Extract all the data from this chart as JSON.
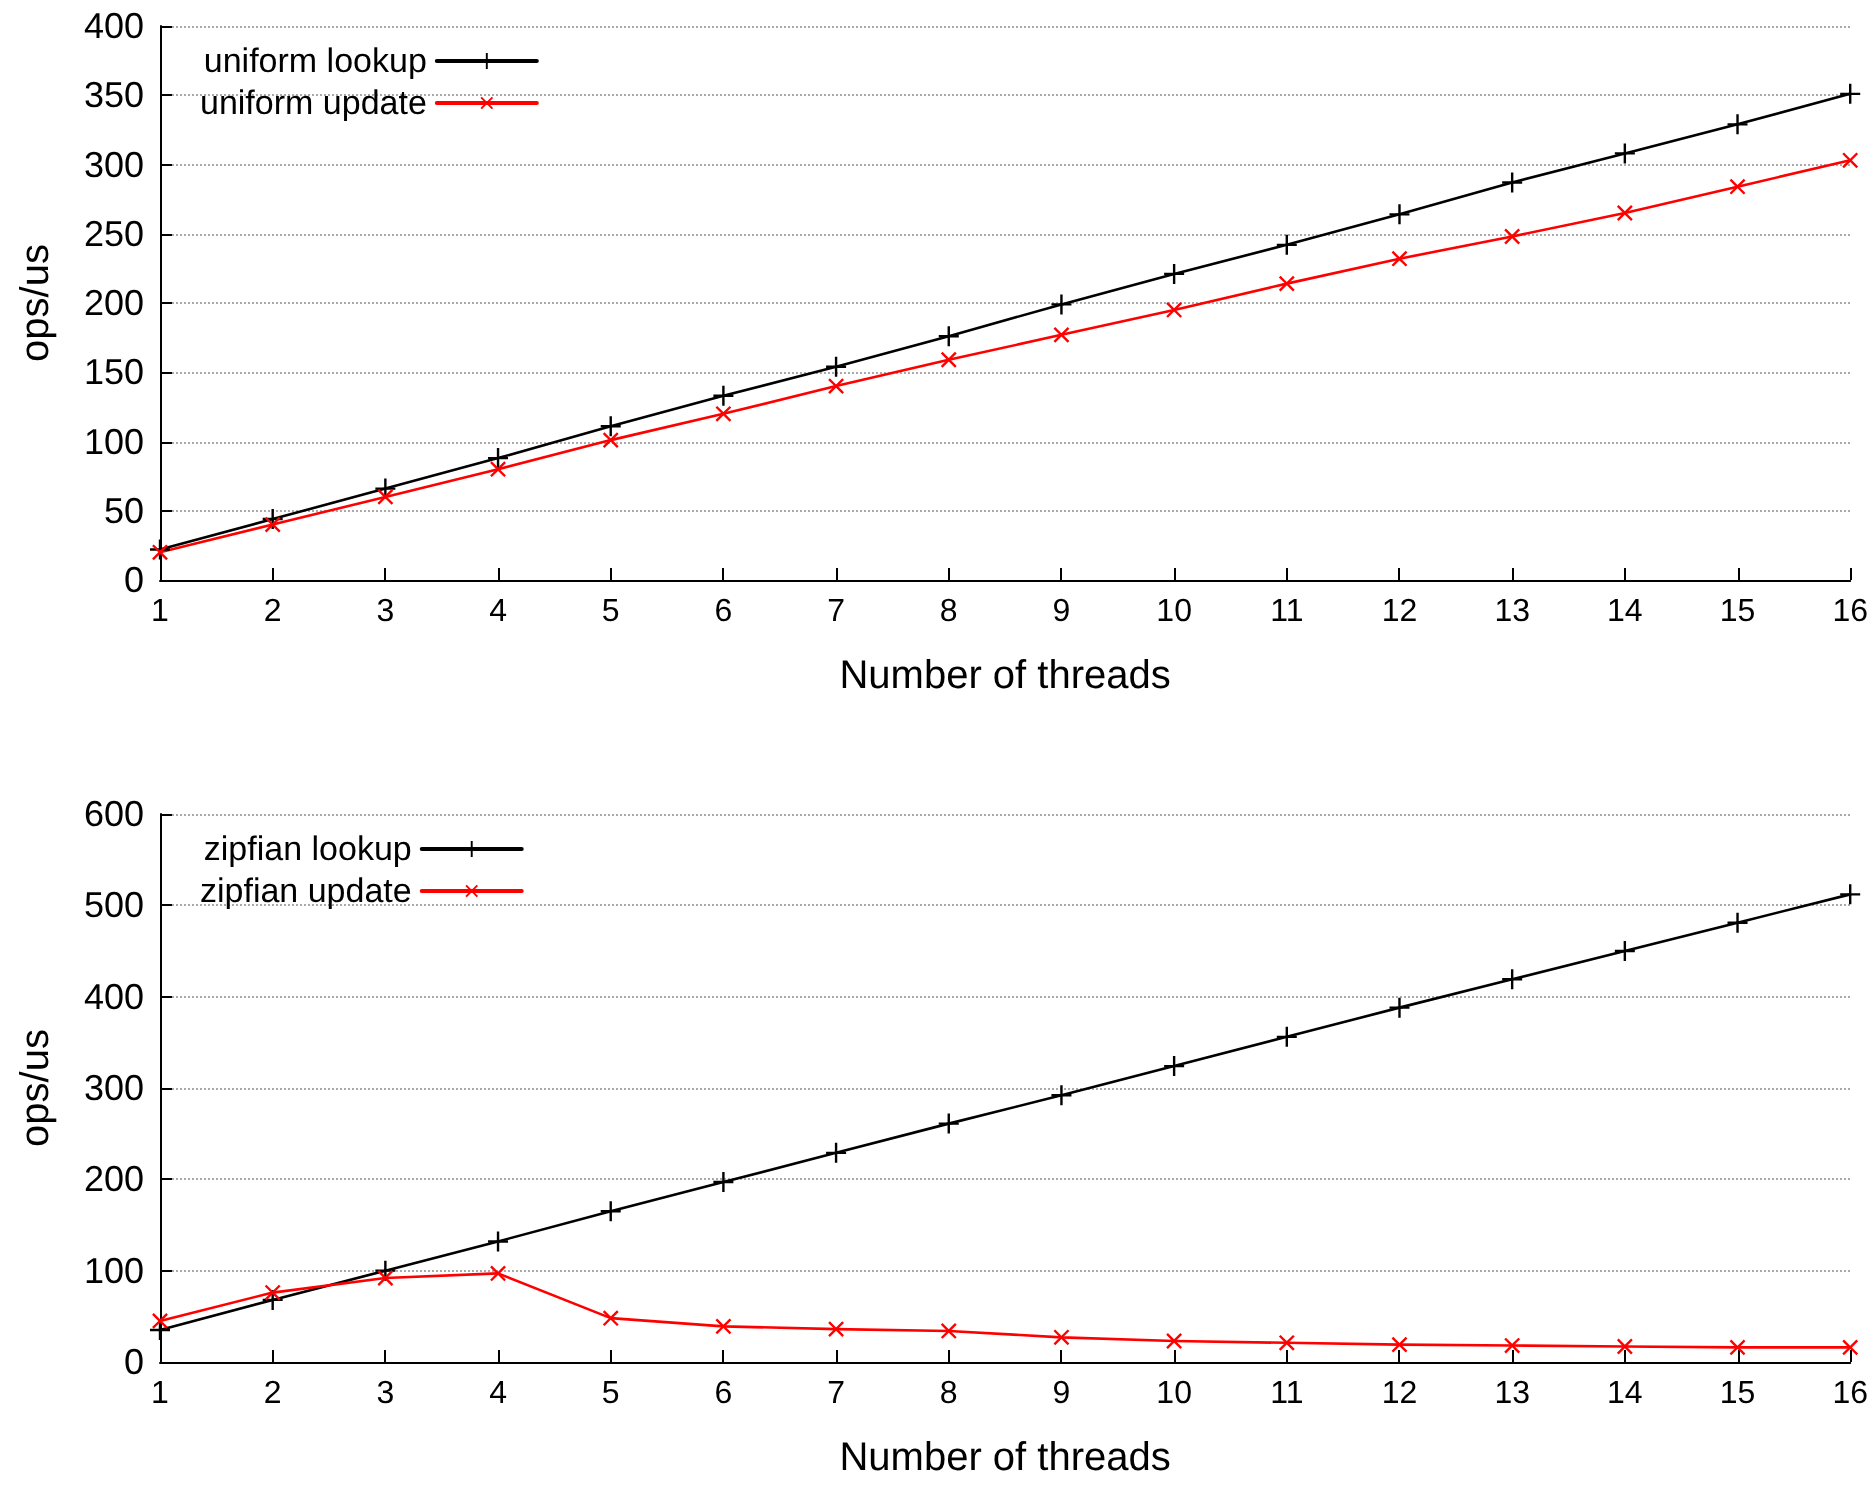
{
  "chart_data": [
    {
      "type": "line",
      "xlabel": "Number of threads",
      "ylabel": "ops/us",
      "x": [
        1,
        2,
        3,
        4,
        5,
        6,
        7,
        8,
        9,
        10,
        11,
        12,
        13,
        14,
        15,
        16
      ],
      "xlim": [
        1,
        16
      ],
      "xticks": [
        1,
        2,
        3,
        4,
        5,
        6,
        7,
        8,
        9,
        10,
        11,
        12,
        13,
        14,
        15,
        16
      ],
      "ylim": [
        0,
        400
      ],
      "yticks": [
        0,
        50,
        100,
        150,
        200,
        250,
        300,
        350,
        400
      ],
      "grid": "y",
      "legend": "top left",
      "line_style": "solid",
      "series": [
        {
          "name": "uniform lookup",
          "color": "#000000",
          "marker": "plus",
          "values": [
            22,
            44,
            66,
            88,
            111,
            133,
            154,
            176,
            199,
            221,
            242,
            264,
            287,
            308,
            329,
            351
          ]
        },
        {
          "name": "uniform update",
          "color": "#ff0000",
          "marker": "cross",
          "values": [
            20,
            40,
            60,
            80,
            101,
            120,
            140,
            159,
            177,
            195,
            214,
            232,
            248,
            265,
            284,
            303
          ]
        }
      ]
    },
    {
      "type": "line",
      "xlabel": "Number of threads",
      "ylabel": "ops/us",
      "x": [
        1,
        2,
        3,
        4,
        5,
        6,
        7,
        8,
        9,
        10,
        11,
        12,
        13,
        14,
        15,
        16
      ],
      "xlim": [
        1,
        16
      ],
      "xticks": [
        1,
        2,
        3,
        4,
        5,
        6,
        7,
        8,
        9,
        10,
        11,
        12,
        13,
        14,
        15,
        16
      ],
      "ylim": [
        0,
        600
      ],
      "yticks": [
        0,
        100,
        200,
        300,
        400,
        500,
        600
      ],
      "grid": "y",
      "legend": "top left",
      "line_style": "solid",
      "series": [
        {
          "name": "zipfian lookup",
          "color": "#000000",
          "marker": "plus",
          "values": [
            35,
            68,
            100,
            132,
            165,
            197,
            229,
            261,
            292,
            324,
            356,
            388,
            419,
            450,
            481,
            512
          ]
        },
        {
          "name": "zipfian update",
          "color": "#ff0000",
          "marker": "cross",
          "values": [
            45,
            76,
            92,
            97,
            48,
            39,
            36,
            34,
            27,
            23,
            21,
            19,
            18,
            17,
            16,
            16
          ]
        }
      ]
    }
  ]
}
